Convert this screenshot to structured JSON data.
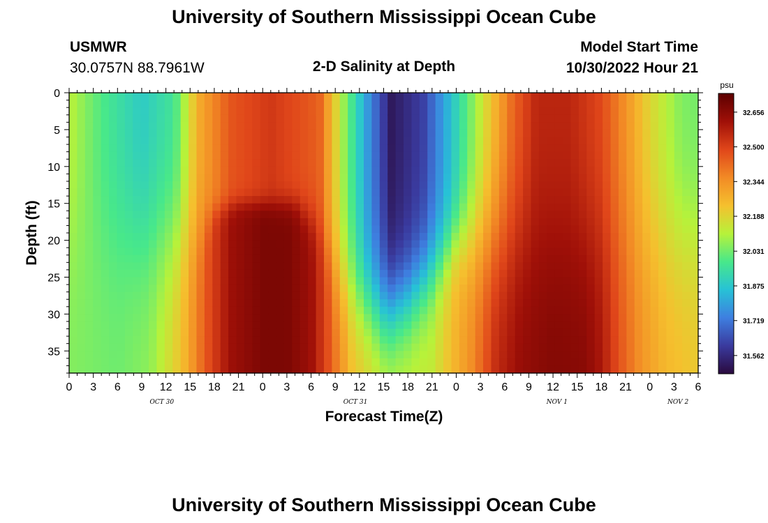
{
  "header": {
    "title": "University of Southern Mississippi Ocean Cube",
    "station_id": "USMWR",
    "coordinates": "30.0757N  88.7961W",
    "plot_title": "2-D Salinity at Depth",
    "model_start_label": "Model Start Time",
    "model_start_value": "10/30/2022 Hour 21"
  },
  "footer": {
    "title": "University of Southern Mississippi Ocean Cube"
  },
  "chart_data": {
    "type": "heatmap",
    "title": "2-D Salinity at Depth",
    "xlabel": "Forecast Time(Z)",
    "ylabel": "Depth (ft)",
    "x_range_hours": [
      0,
      78
    ],
    "y_range_ft": [
      0,
      38
    ],
    "y_inverted": true,
    "x_tick_labels": [
      "0",
      "3",
      "6",
      "9",
      "12",
      "15",
      "18",
      "21",
      "0",
      "3",
      "6",
      "9",
      "12",
      "15",
      "18",
      "21",
      "0",
      "3",
      "6",
      "9",
      "12",
      "15",
      "18",
      "21",
      "0",
      "3",
      "6"
    ],
    "x_tick_step_hours": 3,
    "y_tick_values": [
      0,
      5,
      10,
      15,
      20,
      25,
      30,
      35
    ],
    "date_labels": [
      {
        "text": "OCT 30",
        "hour": 11.5
      },
      {
        "text": "OCT 31",
        "hour": 35.5
      },
      {
        "text": "NOV 1",
        "hour": 60.5
      },
      {
        "text": "NOV 2",
        "hour": 75.5
      }
    ],
    "colorbar": {
      "unit": "psu",
      "min": 31.48,
      "max": 32.74,
      "labels": [
        "32.656",
        "32.500",
        "32.344",
        "32.188",
        "32.031",
        "31.875",
        "31.719",
        "31.562"
      ],
      "stops": [
        "#2a0a3e",
        "#3a3a9e",
        "#3e7fe0",
        "#27c2d6",
        "#48e88a",
        "#b7f23a",
        "#f5c02e",
        "#f28a25",
        "#e0461a",
        "#a01008",
        "#5c0000"
      ]
    },
    "surface_salinity_profile": {
      "hours": [
        0,
        4,
        9,
        13,
        16,
        20,
        25,
        31,
        34,
        37,
        40,
        44,
        50,
        55,
        58,
        62,
        66,
        69,
        72,
        76,
        78
      ],
      "salinity": [
        32.12,
        31.99,
        31.88,
        31.96,
        32.28,
        32.46,
        32.52,
        32.44,
        32.08,
        31.78,
        31.52,
        31.62,
        32.05,
        32.42,
        32.56,
        32.56,
        32.48,
        32.34,
        32.18,
        32.04,
        32.03
      ]
    },
    "bottom_salinity_profile": {
      "hours": [
        0,
        6,
        10,
        14,
        17,
        20,
        24,
        27,
        30,
        32,
        35,
        40,
        45,
        50,
        53,
        56,
        60,
        64,
        66,
        68,
        71,
        74,
        78
      ],
      "salinity": [
        32.05,
        32.03,
        32.07,
        32.24,
        32.46,
        32.62,
        32.68,
        32.68,
        32.62,
        32.48,
        32.25,
        32.14,
        32.14,
        32.36,
        32.56,
        32.64,
        32.67,
        32.66,
        32.6,
        32.48,
        32.34,
        32.26,
        32.22
      ]
    },
    "halocline": {
      "hours": [
        0,
        12,
        16,
        18,
        21,
        24,
        28,
        31,
        33,
        36,
        39,
        42,
        45,
        48,
        51,
        54,
        78
      ],
      "depth_ft": [
        20,
        20,
        19,
        16,
        15,
        15,
        15,
        18,
        24,
        28,
        30,
        28,
        24,
        20,
        20,
        20,
        20
      ],
      "thickness_ft": [
        22,
        22,
        12,
        4,
        3,
        3,
        4,
        8,
        14,
        16,
        16,
        15,
        14,
        12,
        18,
        22,
        22
      ]
    }
  }
}
